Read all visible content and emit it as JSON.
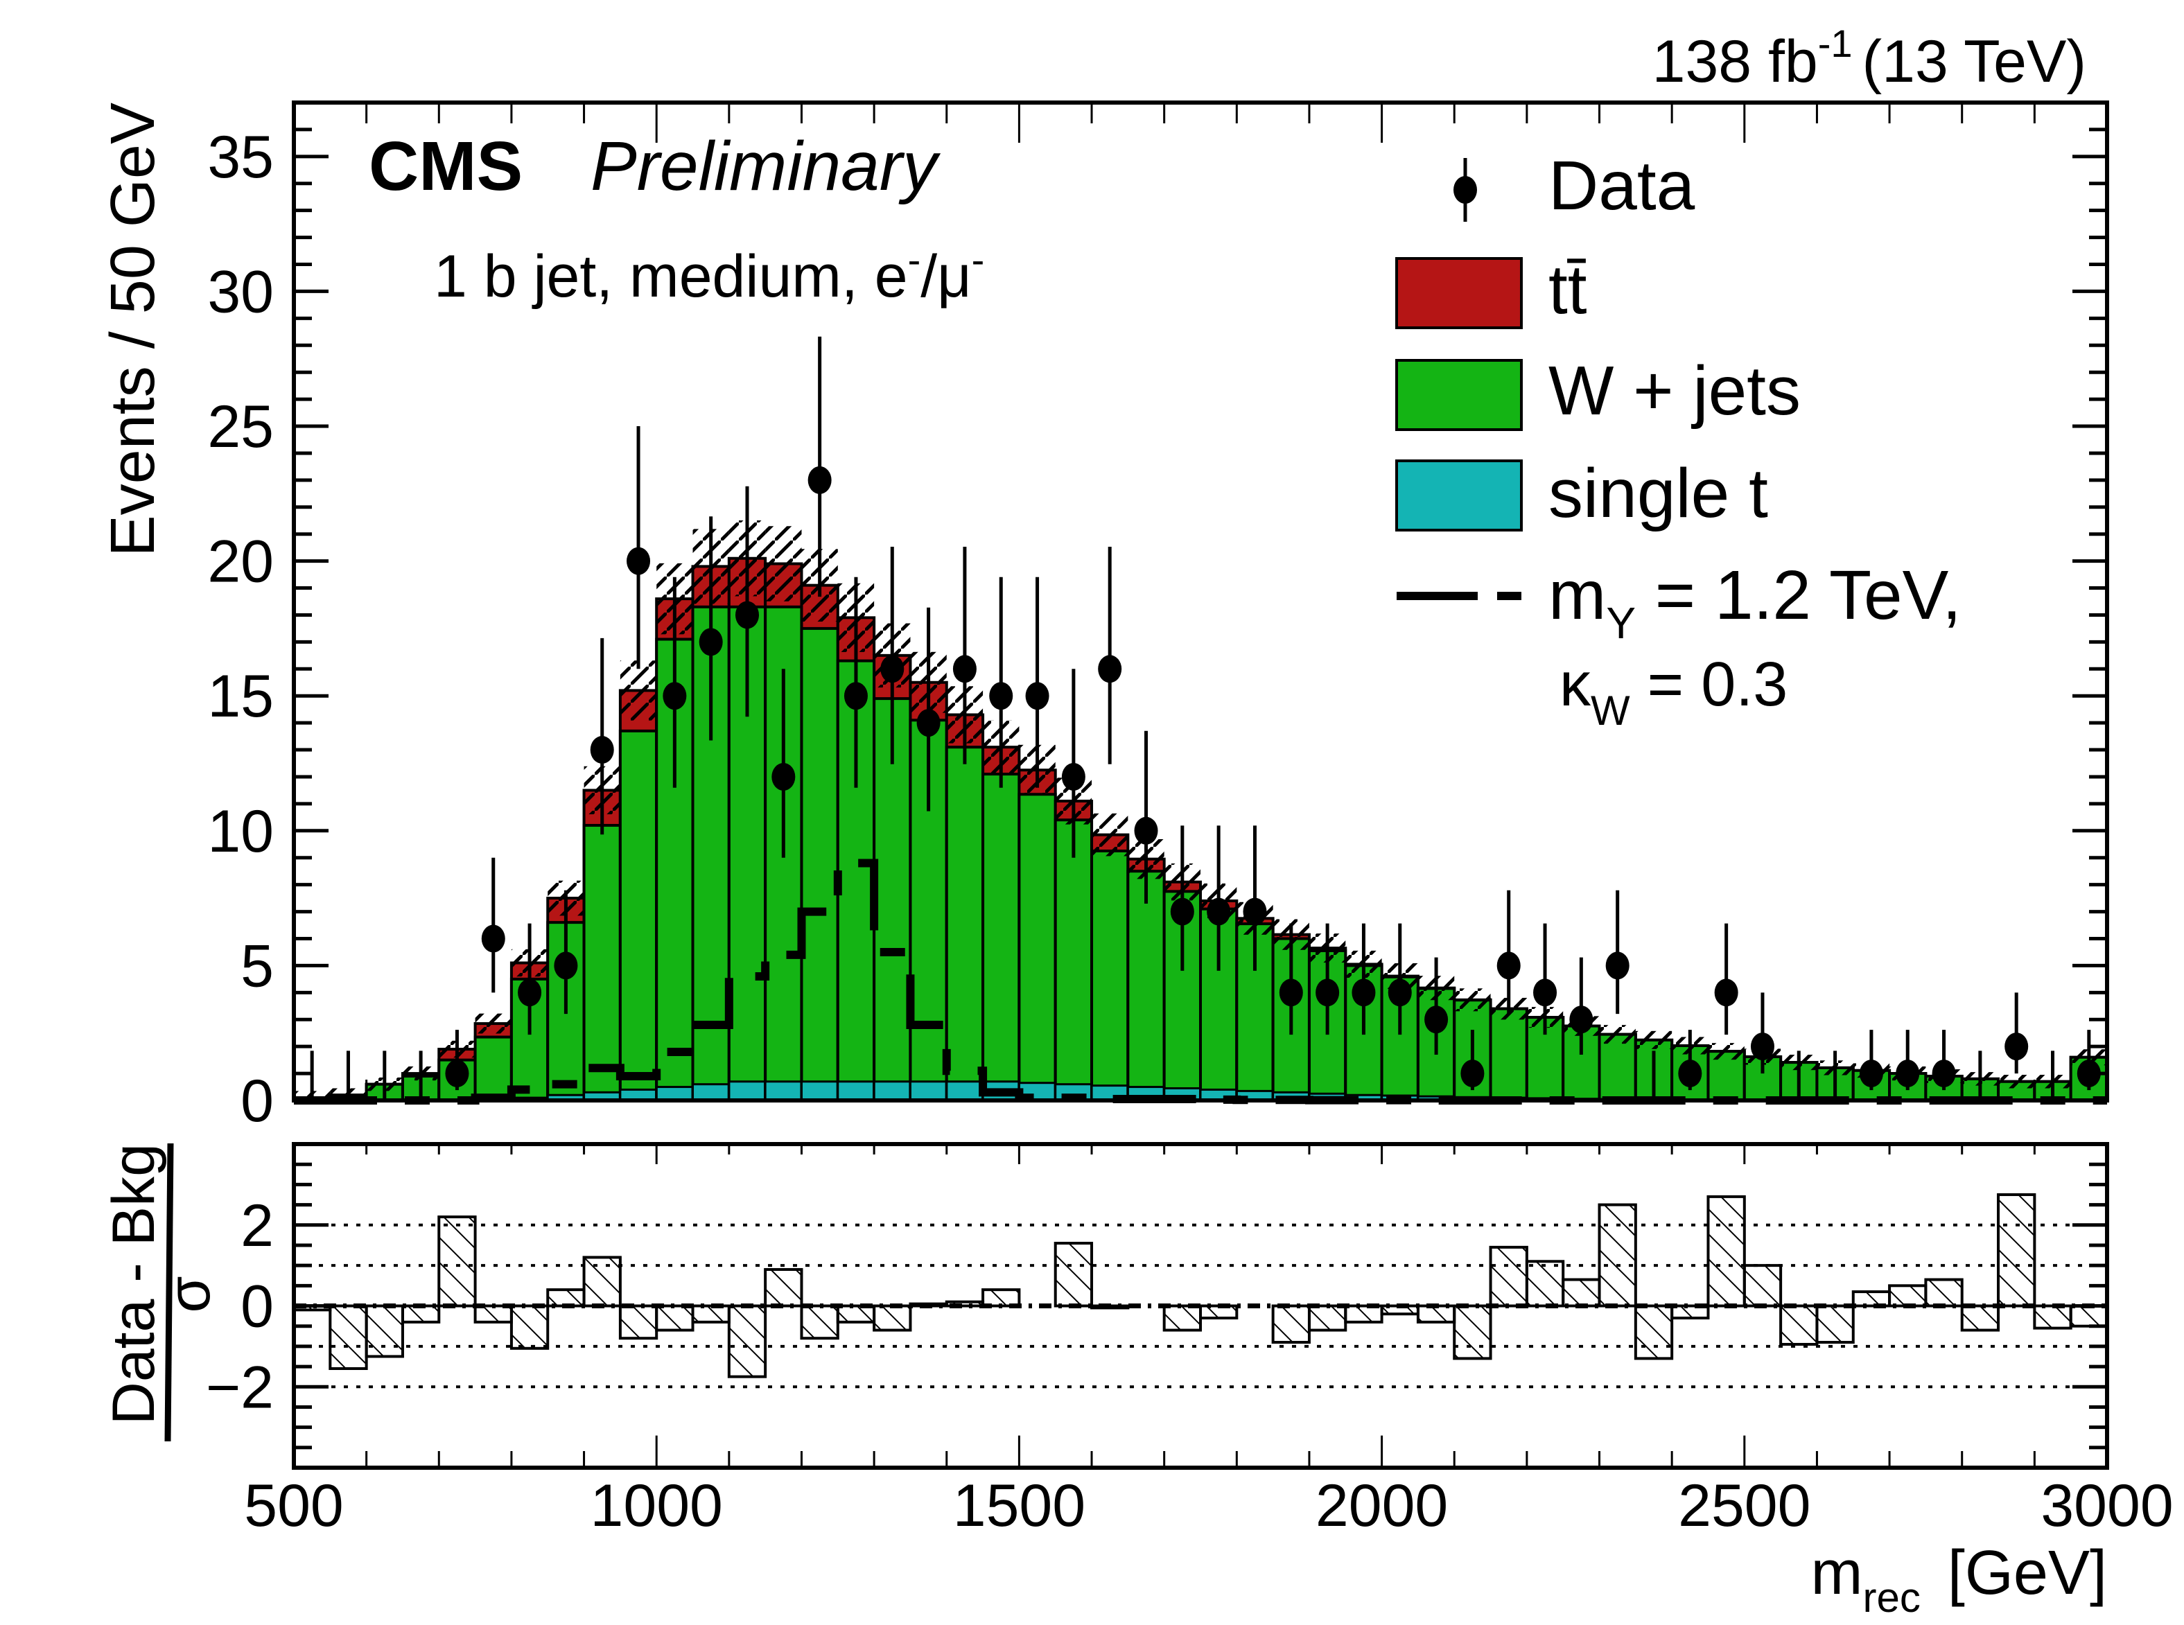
{
  "header": {
    "experiment": "CMS",
    "status": "Preliminary",
    "lumi_label": "138 fb",
    "lumi_sup": "-1",
    "energy_label": "(13 TeV)",
    "category_text": "1 b jet, medium, e",
    "category_sup1": "-",
    "category_mid": "/μ",
    "category_sup2": "-"
  },
  "legend": {
    "data": "Data",
    "ttbar": "tt̄",
    "wjets": "W + jets",
    "singlet": "single t",
    "signal_line1_main": "m",
    "signal_line1_sub": "Y",
    "signal_line1_rest": " = 1.2 TeV,",
    "signal_line2_main": "κ",
    "signal_line2_sub": "W",
    "signal_line2_rest": " = 0.3"
  },
  "chart_data": [
    {
      "type": "bar",
      "subtype": "stacked-histogram-with-data-points",
      "title": "",
      "xlabel": "m_rec [GeV]",
      "xlabel_main": "m",
      "xlabel_sub": "rec",
      "xlabel_rest": " [GeV]",
      "ylabel": "Events / 50 GeV",
      "xlim": [
        500,
        3000
      ],
      "ylim": [
        0,
        37
      ],
      "x_ticks": [
        500,
        1000,
        1500,
        2000,
        2500,
        3000
      ],
      "y_ticks": [
        0,
        5,
        10,
        15,
        20,
        25,
        30,
        35
      ],
      "bin_width": 50,
      "colors": {
        "ttbar": "#b51515",
        "wjets": "#14b414",
        "singlet": "#14b4b4",
        "data": "#000000"
      },
      "series": [
        {
          "name": "single t",
          "values": [
            0,
            0,
            0,
            0,
            0,
            0.05,
            0.1,
            0.2,
            0.3,
            0.4,
            0.5,
            0.6,
            0.7,
            0.7,
            0.7,
            0.7,
            0.7,
            0.7,
            0.7,
            0.7,
            0.65,
            0.6,
            0.55,
            0.5,
            0.45,
            0.4,
            0.35,
            0.3,
            0.25,
            0.2,
            0.18,
            0.15,
            0.12,
            0.1,
            0.08,
            0.06,
            0.05,
            0.04,
            0.03,
            0.02,
            0.02,
            0.01,
            0.01,
            0.01,
            0,
            0,
            0,
            0,
            0,
            0
          ]
        },
        {
          "name": "W + jets",
          "values": [
            0.1,
            0.2,
            0.6,
            0.9,
            1.5,
            2.3,
            4.4,
            6.4,
            9.9,
            13.3,
            16.6,
            17.7,
            17.6,
            17.6,
            16.8,
            15.6,
            14.2,
            13.4,
            12.4,
            11.4,
            10.7,
            9.8,
            8.7,
            8.0,
            7.3,
            6.7,
            6.2,
            5.7,
            5.3,
            4.8,
            4.4,
            4.0,
            3.6,
            3.3,
            3.0,
            2.7,
            2.4,
            2.2,
            2.0,
            1.8,
            1.6,
            1.4,
            1.2,
            1.1,
            1.0,
            0.9,
            0.8,
            0.7,
            0.7,
            1.6
          ]
        },
        {
          "name": "tt̄",
          "values": [
            0,
            0,
            0,
            0.1,
            0.4,
            0.5,
            0.6,
            0.9,
            1.3,
            1.5,
            1.5,
            1.5,
            1.8,
            1.6,
            1.6,
            1.6,
            1.6,
            1.4,
            1.2,
            1.0,
            0.9,
            0.7,
            0.6,
            0.45,
            0.35,
            0.3,
            0.2,
            0.15,
            0.1,
            0.05,
            0.03,
            0.02,
            0.01,
            0,
            0,
            0,
            0,
            0,
            0,
            0,
            0,
            0,
            0,
            0,
            0,
            0,
            0,
            0,
            0,
            0
          ]
        }
      ],
      "data_points": {
        "name": "Data",
        "values": [
          0,
          0,
          0,
          0,
          1,
          6,
          4,
          5,
          13,
          20,
          15,
          17,
          18,
          12,
          23,
          15,
          16,
          14,
          16,
          15,
          15,
          12,
          16,
          10,
          7,
          7,
          7,
          4,
          4,
          4,
          4,
          3,
          1,
          5,
          4,
          3,
          5,
          0,
          1,
          4,
          2,
          0,
          0,
          1,
          1,
          1,
          0,
          2,
          0,
          1
        ]
      },
      "signal": {
        "name": "m_Y = 1.2 TeV, κ_W = 0.3",
        "style": "dashed",
        "values": [
          0,
          0,
          0,
          0,
          0,
          0.1,
          0.4,
          0.6,
          1.2,
          0.9,
          1.8,
          2.8,
          4.6,
          5.4,
          7.0,
          8.8,
          5.5,
          2.8,
          1.1,
          0.3,
          0.1,
          0.1,
          0.05,
          0.05,
          0.05,
          0.03,
          0.02,
          0.02,
          0.01,
          0.01,
          0.01,
          0,
          0,
          0,
          0,
          0,
          0,
          0,
          0,
          0,
          0,
          0,
          0,
          0,
          0,
          0,
          0,
          0,
          0,
          0
        ]
      },
      "legend_position": "top-right"
    },
    {
      "type": "bar",
      "subtype": "ratio-pull-histogram",
      "xlabel": "m_rec [GeV]",
      "ylabel": "(Data - Bkg) / σ",
      "ylabel_num": "Data - Bkg",
      "ylabel_den": "σ",
      "xlim": [
        500,
        3000
      ],
      "ylim": [
        -4,
        4
      ],
      "x_ticks": [
        500,
        1000,
        1500,
        2000,
        2500,
        3000
      ],
      "x_tick_labels": [
        "500",
        "1000",
        "1500",
        "2000",
        "2500",
        "3000"
      ],
      "y_ticks": [
        -2,
        0,
        2
      ],
      "y_tick_labels": [
        "−2",
        "0",
        "2"
      ],
      "reference_lines": [
        -2,
        -1,
        0,
        1,
        2
      ],
      "values": [
        -0.1,
        -1.55,
        -1.25,
        -0.4,
        2.2,
        -0.4,
        -1.05,
        0.4,
        1.2,
        -0.8,
        -0.6,
        -0.4,
        -1.75,
        0.9,
        -0.8,
        -0.4,
        -0.6,
        0.05,
        0.1,
        0.4,
        0,
        1.55,
        -0.05,
        0,
        -0.6,
        -0.3,
        0,
        -0.9,
        -0.6,
        -0.4,
        -0.2,
        -0.4,
        -1.3,
        1.45,
        1.1,
        0.65,
        2.5,
        -1.3,
        -0.3,
        2.7,
        1.0,
        -0.95,
        -0.9,
        0.35,
        0.5,
        0.65,
        -0.6,
        2.75,
        -0.55,
        -0.5
      ]
    }
  ]
}
